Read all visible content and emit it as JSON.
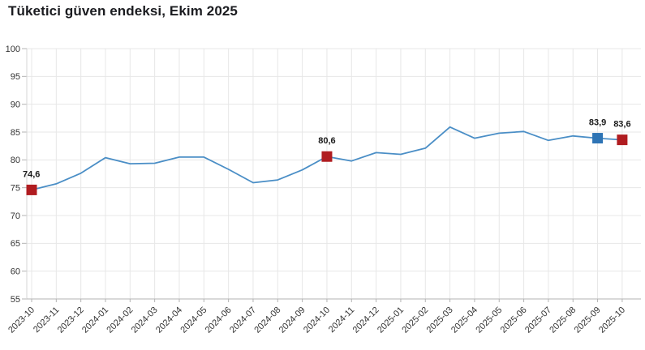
{
  "header": {
    "title": "Tüketici güven endeksi, Ekim 2025"
  },
  "chart_data": {
    "type": "line",
    "title": "Tüketici güven endeksi, Ekim 2025",
    "x": [
      "2023-10",
      "2023-11",
      "2023-12",
      "2024-01",
      "2024-02",
      "2024-03",
      "2024-04",
      "2024-05",
      "2024-06",
      "2024-07",
      "2024-08",
      "2024-09",
      "2024-10",
      "2024-11",
      "2024-12",
      "2025-01",
      "2025-02",
      "2025-03",
      "2025-04",
      "2025-05",
      "2025-06",
      "2025-07",
      "2025-08",
      "2025-09",
      "2025-10"
    ],
    "values": [
      74.6,
      75.7,
      77.6,
      80.4,
      79.3,
      79.4,
      80.5,
      80.5,
      78.3,
      75.9,
      76.4,
      78.2,
      80.6,
      79.8,
      81.3,
      81.0,
      82.1,
      85.9,
      83.9,
      84.8,
      85.1,
      83.5,
      84.3,
      83.9,
      83.6
    ],
    "ylim": [
      55,
      100
    ],
    "ytick_step": 5,
    "ytick_labels": [
      "55",
      "60",
      "65",
      "70",
      "75",
      "80",
      "85",
      "90",
      "95",
      "100"
    ],
    "grid": "both",
    "legend": "none",
    "marked_points": [
      {
        "x": "2023-10",
        "index": 0,
        "value": 74.6,
        "label": "74,6",
        "marker": "square",
        "color": "#b01c20",
        "label_align": "left"
      },
      {
        "x": "2024-10",
        "index": 12,
        "value": 80.6,
        "label": "80,6",
        "marker": "square",
        "color": "#b01c20",
        "label_align": "center"
      },
      {
        "x": "2025-09",
        "index": 23,
        "value": 83.9,
        "label": "83,9",
        "marker": "square",
        "color": "#2e74b5",
        "label_align": "center"
      },
      {
        "x": "2025-10",
        "index": 24,
        "value": 83.6,
        "label": "83,6",
        "marker": "square",
        "color": "#b01c20",
        "label_align": "center"
      }
    ],
    "colors": {
      "line": "#4a8ec6",
      "marker_red": "#b01c20",
      "marker_blue": "#2e74b5",
      "grid": "#e7e7e7",
      "axis": "#b3b3b3",
      "axis_left": "#d6d6d6",
      "tick_text": "#333333",
      "point_label_text": "#1a1a1a",
      "title_text": "#1b1c20",
      "background": "#ffffff"
    }
  }
}
